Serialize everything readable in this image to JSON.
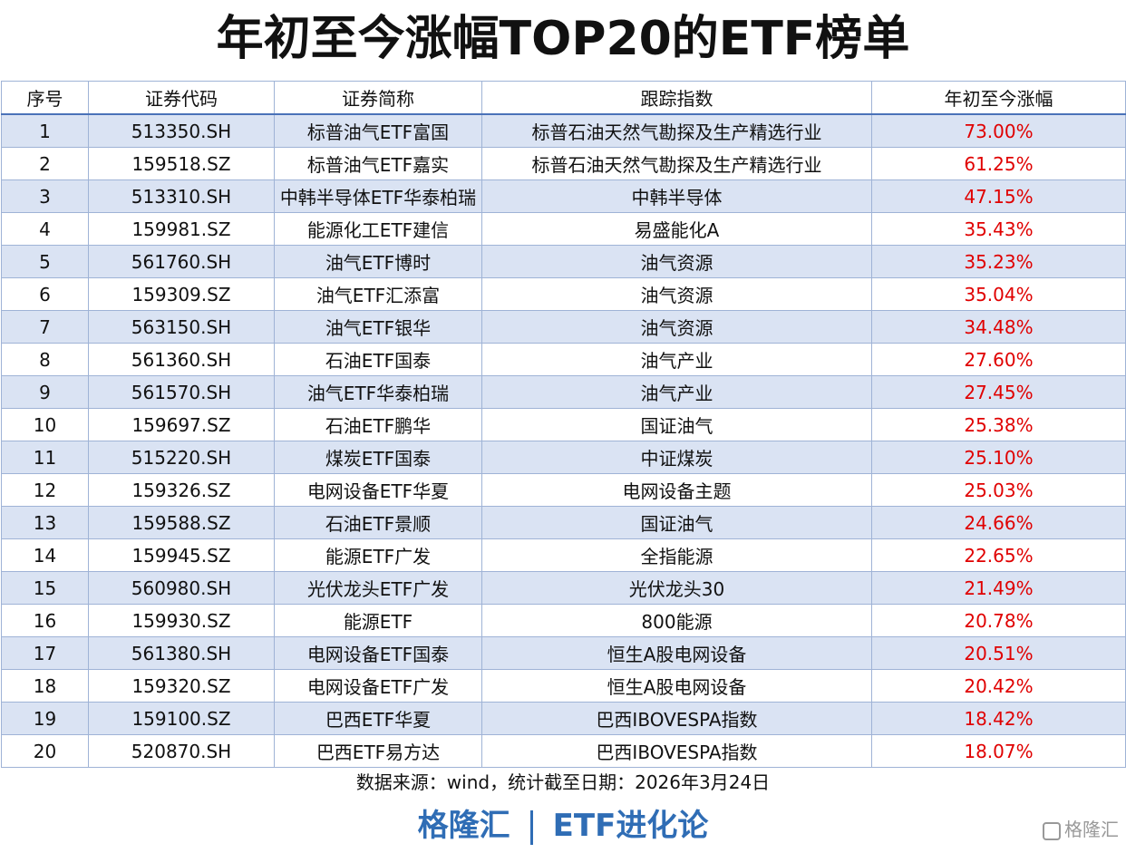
{
  "title": "年初至今涨幅TOP20的ETF榜单",
  "table": {
    "header": [
      "序号",
      "证券代码",
      "证券简称",
      "跟踪指数",
      "年初至今涨幅"
    ],
    "rows": [
      [
        "1",
        "513350.SH",
        "标普油气ETF富国",
        "标普石油天然气勘探及生产精选行业",
        "73.00%"
      ],
      [
        "2",
        "159518.SZ",
        "标普油气ETF嘉实",
        "标普石油天然气勘探及生产精选行业",
        "61.25%"
      ],
      [
        "3",
        "513310.SH",
        "中韩半导体ETF华泰柏瑞",
        "中韩半导体",
        "47.15%"
      ],
      [
        "4",
        "159981.SZ",
        "能源化工ETF建信",
        "易盛能化A",
        "35.43%"
      ],
      [
        "5",
        "561760.SH",
        "油气ETF博时",
        "油气资源",
        "35.23%"
      ],
      [
        "6",
        "159309.SZ",
        "油气ETF汇添富",
        "油气资源",
        "35.04%"
      ],
      [
        "7",
        "563150.SH",
        "油气ETF银华",
        "油气资源",
        "34.48%"
      ],
      [
        "8",
        "561360.SH",
        "石油ETF国泰",
        "油气产业",
        "27.60%"
      ],
      [
        "9",
        "561570.SH",
        "油气ETF华泰柏瑞",
        "油气产业",
        "27.45%"
      ],
      [
        "10",
        "159697.SZ",
        "石油ETF鹏华",
        "国证油气",
        "25.38%"
      ],
      [
        "11",
        "515220.SH",
        "煤炭ETF国泰",
        "中证煤炭",
        "25.10%"
      ],
      [
        "12",
        "159326.SZ",
        "电网设备ETF华夏",
        "电网设备主题",
        "25.03%"
      ],
      [
        "13",
        "159588.SZ",
        "石油ETF景顺",
        "国证油气",
        "24.66%"
      ],
      [
        "14",
        "159945.SZ",
        "能源ETF广发",
        "全指能源",
        "22.65%"
      ],
      [
        "15",
        "560980.SH",
        "光伏龙头ETF广发",
        "光伏龙头30",
        "21.49%"
      ],
      [
        "16",
        "159930.SZ",
        "能源ETF",
        "800能源",
        "20.78%"
      ],
      [
        "17",
        "561380.SH",
        "电网设备ETF国泰",
        "恒生A股电网设备",
        "20.51%"
      ],
      [
        "18",
        "159320.SZ",
        "电网设备ETF广发",
        "恒生A股电网设备",
        "20.42%"
      ],
      [
        "19",
        "159100.SZ",
        "巴西ETF华夏",
        "巴西IBOVESPA指数",
        "18.42%"
      ],
      [
        "20",
        "520870.SH",
        "巴西ETF易方达",
        "巴西IBOVESPA指数",
        "18.07%"
      ]
    ]
  },
  "note": "数据来源：wind，统计截至日期：2026年3月24日",
  "footer": {
    "brand": "格隆汇",
    "column": "ETF进化论"
  },
  "watermark": "格隆汇"
}
